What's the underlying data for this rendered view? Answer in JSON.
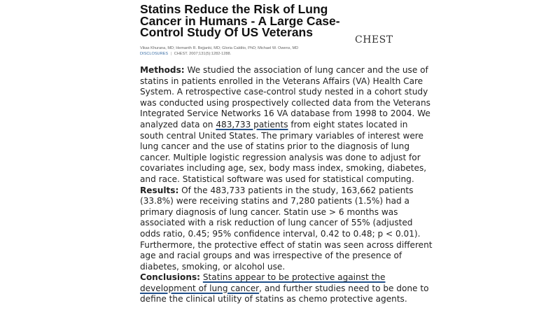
{
  "article": {
    "title": "Statins Reduce the Risk of Lung Cancer in Humans - A Large Case-Control Study Of US Veterans",
    "journal": "CHEST",
    "authors": "Vikas Khurana, MD; Hemanth R. Bejjanki, MD; Gloria Caldito, PhD; Michael W. Owens, MD",
    "disclosures_label": "Disclosures",
    "separator": "|",
    "citation": "CHEST. 2007;131(5):1282-1288."
  },
  "abstract": {
    "methods_label": "Methods:",
    "methods_pre": " We studied the association of lung cancer and the use of statins in patients enrolled in the Veterans Affairs (VA) Health Care System. A retrospective case-control study nested in a cohort study was conducted using prospectively collected data from the Veterans Integrated Service Networks 16 VA database from 1998 to 2004. We analyzed data on ",
    "methods_highlight": "483,733 patients",
    "methods_post": " from eight states located in south central United States. The primary variables of interest were lung cancer and the use of statins prior to the diagnosis of lung cancer. Multiple logistic regression analysis was done to adjust for covariates including age, sex, body mass index, smoking, diabetes, and race. Statistical software was used for statistical computing.",
    "results_label": "Results:",
    "results_text": " Of the 483,733 patients in the study, 163,662 patients (33.8%) were receiving statins and 7,280 patients (1.5%) had a primary diagnosis of lung cancer. Statin use > 6 months was associated with a risk reduction of lung cancer of 55% (adjusted odds ratio, 0.45; 95% confidence interval, 0.42 to 0.48; p < 0.01). Furthermore, the protective effect of statin was seen across different age and racial groups and was irrespective of the presence of diabetes, smoking, or alcohol use.",
    "conclusions_label": "Conclusions:",
    "conclusions_space": " ",
    "conclusions_highlight": "Statins appear to be protective against the development of lung cancer",
    "conclusions_post": ", and further studies need to be done to define the clinical utility of statins as chemo protective agents."
  },
  "colors": {
    "underline": "#1f4f8a",
    "link": "#3a6ea5"
  }
}
